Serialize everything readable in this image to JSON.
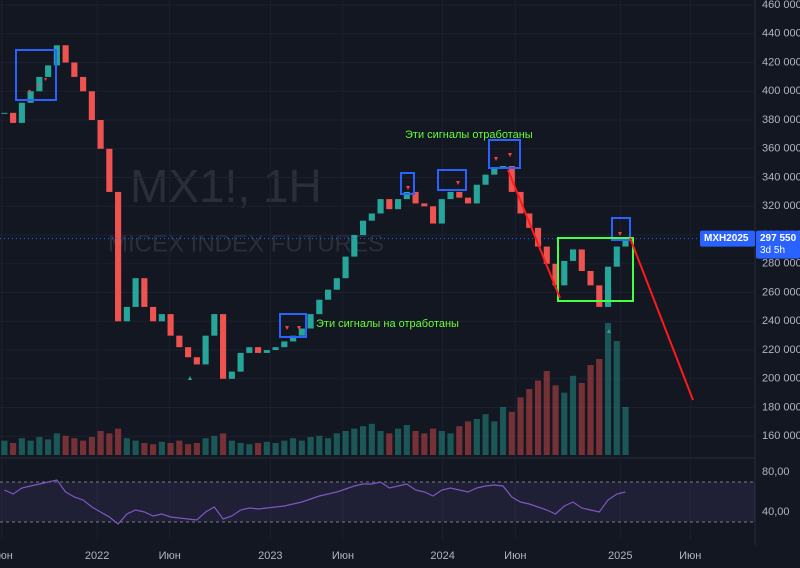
{
  "chart_data": {
    "type": "candlestick",
    "watermark_symbol": "MX1!, 1H",
    "watermark_name": "MICEX INDEX FUTURES",
    "annotations": [
      "Эти сигналы отработаны",
      "Эти сигналы на отработаны"
    ],
    "values": [
      385000,
      378000,
      392000,
      400000,
      410000,
      418000,
      432000,
      420000,
      410000,
      400000,
      380000,
      360000,
      330000,
      240000,
      250000,
      270000,
      250000,
      240000,
      245000,
      230000,
      222000,
      215000,
      210000,
      230000,
      245000,
      200000,
      205000,
      218000,
      222000,
      218000,
      220000,
      222000,
      226000,
      230000,
      235000,
      245000,
      255000,
      262000,
      270000,
      285000,
      300000,
      310000,
      315000,
      325000,
      318000,
      325000,
      330000,
      322000,
      320000,
      308000,
      325000,
      330000,
      326000,
      322000,
      335000,
      342000,
      346000,
      348000,
      330000,
      315000,
      305000,
      292000,
      280000,
      265000,
      282000,
      290000,
      275000,
      265000,
      250000,
      278000,
      292000,
      297550
    ],
    "volume": [
      12,
      10,
      14,
      12,
      15,
      13,
      18,
      16,
      14,
      12,
      15,
      20,
      18,
      22,
      14,
      12,
      10,
      9,
      11,
      10,
      12,
      9,
      10,
      14,
      16,
      18,
      12,
      10,
      9,
      10,
      11,
      10,
      12,
      14,
      12,
      15,
      16,
      14,
      18,
      20,
      22,
      24,
      26,
      20,
      18,
      22,
      25,
      20,
      18,
      22,
      20,
      18,
      24,
      28,
      30,
      34,
      28,
      40,
      36,
      48,
      55,
      62,
      70,
      58,
      52,
      66,
      60,
      75,
      80,
      110,
      95,
      40
    ],
    "rsi": [
      62,
      58,
      64,
      66,
      68,
      70,
      72,
      60,
      55,
      52,
      45,
      40,
      35,
      28,
      38,
      42,
      40,
      36,
      38,
      35,
      34,
      33,
      32,
      40,
      45,
      33,
      36,
      42,
      44,
      43,
      44,
      45,
      46,
      48,
      50,
      53,
      56,
      58,
      60,
      63,
      66,
      68,
      68,
      70,
      64,
      66,
      68,
      62,
      60,
      56,
      62,
      64,
      62,
      60,
      64,
      66,
      67,
      66,
      55,
      50,
      48,
      45,
      42,
      38,
      46,
      50,
      44,
      42,
      40,
      52,
      58,
      60
    ],
    "rsi_levels": [
      70,
      30
    ],
    "xlim": [
      0,
      86.3
    ],
    "xticks": [
      {
        "value": 0.2,
        "label": "Июн"
      },
      {
        "value": 11.1,
        "label": "2022"
      },
      {
        "value": 19.4,
        "label": "Июн"
      },
      {
        "value": 30.9,
        "label": "2023"
      },
      {
        "value": 39.2,
        "label": "Июн"
      },
      {
        "value": 50.6,
        "label": "2024"
      },
      {
        "value": 58.9,
        "label": "Июн"
      },
      {
        "value": 70.9,
        "label": "2025"
      },
      {
        "value": 78.9,
        "label": "Июн"
      }
    ],
    "ylim": [
      147000,
      463500
    ],
    "yticks": [
      {
        "value": 160000,
        "label": "160 000"
      },
      {
        "value": 180000,
        "label": "180 000"
      },
      {
        "value": 200000,
        "label": "200 000"
      },
      {
        "value": 220000,
        "label": "220 000"
      },
      {
        "value": 240000,
        "label": "240 000"
      },
      {
        "value": 260000,
        "label": "260 000"
      },
      {
        "value": 280000,
        "label": "280 000"
      },
      {
        "value": 300000,
        "label": "300 000"
      },
      {
        "value": 320000,
        "label": "320 000"
      },
      {
        "value": 340000,
        "label": "340 000"
      },
      {
        "value": 360000,
        "label": "360 000"
      },
      {
        "value": 380000,
        "label": "380 000"
      },
      {
        "value": 400000,
        "label": "400 000"
      },
      {
        "value": 420000,
        "label": "420 000"
      },
      {
        "value": 440000,
        "label": "440 000"
      },
      {
        "value": 460000,
        "label": "460 000"
      }
    ],
    "rsi_lim": [
      24,
      90
    ],
    "rsi_ticks": [
      {
        "value": 80,
        "label": "80,00"
      },
      {
        "value": 40,
        "label": "40,00"
      }
    ],
    "price_tag": {
      "symbol": "MXH2025",
      "price": {
        "value": 297550,
        "label": "297 550"
      },
      "countdown": "3d 5h"
    },
    "up_color": "#26a69a",
    "down_color": "#ef5350",
    "grid": true
  }
}
